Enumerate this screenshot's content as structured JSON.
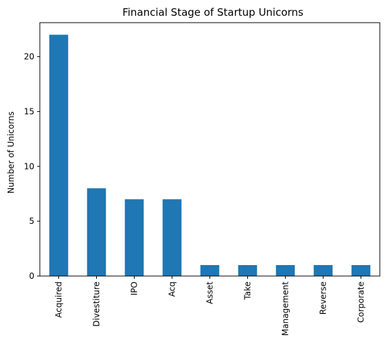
{
  "chart_data": {
    "type": "bar",
    "title": "Financial Stage of Startup Unicorns",
    "xlabel": "",
    "ylabel": "Number of Unicorns",
    "categories": [
      "Acquired",
      "Divestiture",
      "IPO",
      "Acq",
      "Asset",
      "Take",
      "Management",
      "Reverse",
      "Corporate"
    ],
    "values": [
      22,
      8,
      7,
      7,
      1,
      1,
      1,
      1,
      1
    ],
    "ylim": [
      0,
      23.1
    ],
    "yticks": [
      0,
      5,
      10,
      15,
      20
    ],
    "grid": false,
    "legend": "none",
    "colors": {
      "bar": "#1f77b4",
      "axis": "#000000",
      "background": "#ffffff"
    }
  }
}
